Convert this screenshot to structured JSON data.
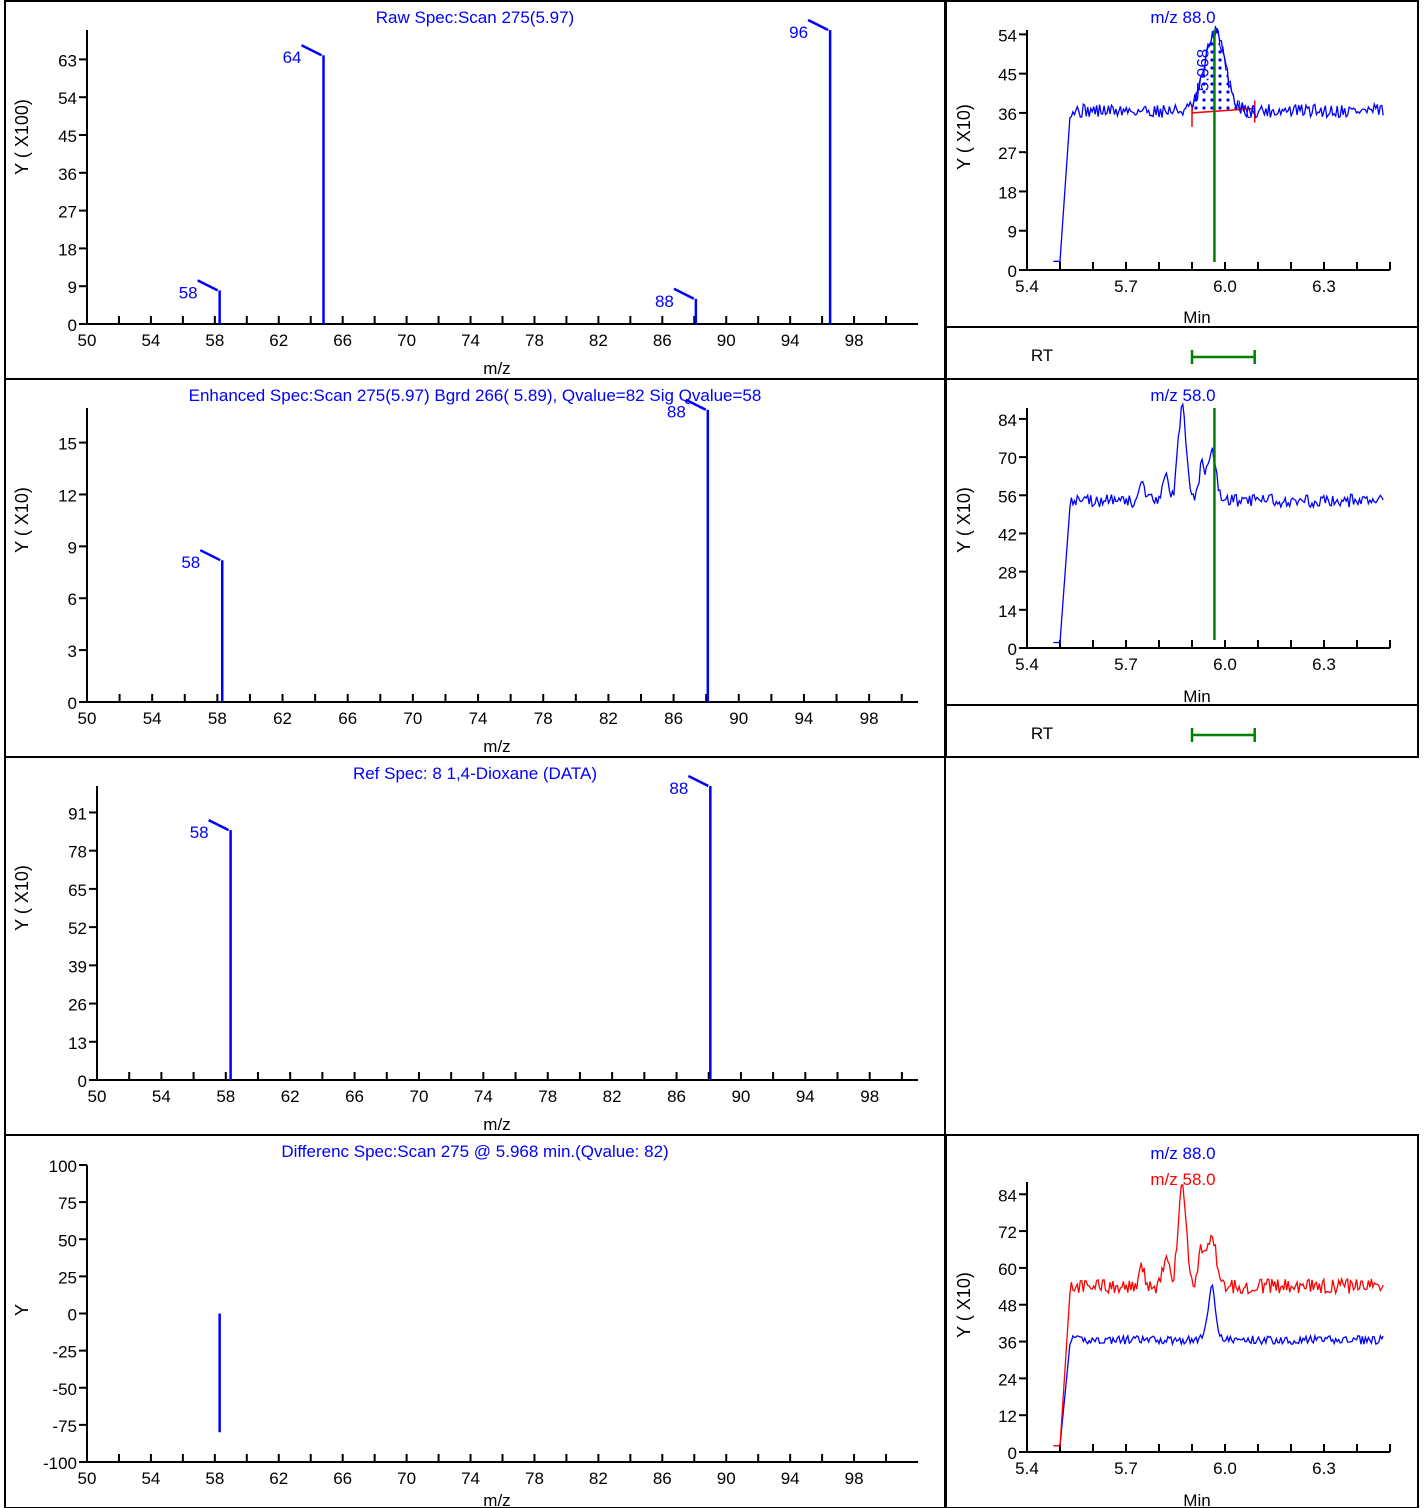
{
  "colors": {
    "blue": "#0000ff",
    "red": "#ff0000",
    "green": "#008000",
    "axis": "#000000",
    "bg": "#ffffff"
  },
  "chart_data": [
    {
      "id": "raw",
      "type": "bar",
      "title": "Raw Spec:Scan 275(5.97)",
      "xlabel": "m/z",
      "ylabel": "Y ( X100)",
      "xlim": [
        50,
        102
      ],
      "ylim": [
        0,
        70
      ],
      "xticks": [
        "50",
        "54",
        "58",
        "62",
        "66",
        "70",
        "74",
        "78",
        "82",
        "86",
        "90",
        "94",
        "98"
      ],
      "yticks": [
        "0",
        "9",
        "18",
        "27",
        "36",
        "45",
        "54",
        "63"
      ],
      "peaks": [
        {
          "x": 58.3,
          "y": 8,
          "label": "58"
        },
        {
          "x": 64.8,
          "y": 64,
          "label": "64"
        },
        {
          "x": 88.1,
          "y": 6,
          "label": "88"
        },
        {
          "x": 96.5,
          "y": 70,
          "label": "96"
        }
      ]
    },
    {
      "id": "enhanced",
      "type": "bar",
      "title": "Enhanced Spec:Scan 275(5.97) Bgrd 266( 5.89), Qvalue=82  Sig Qvalue=58",
      "xlabel": "m/z",
      "ylabel": "Y ( X10)",
      "xlim": [
        50,
        101
      ],
      "ylim": [
        0,
        17
      ],
      "xticks": [
        "50",
        "54",
        "58",
        "62",
        "66",
        "70",
        "74",
        "78",
        "82",
        "86",
        "90",
        "94",
        "98"
      ],
      "yticks": [
        "0",
        "3",
        "6",
        "9",
        "12",
        "15"
      ],
      "peaks": [
        {
          "x": 58.3,
          "y": 8.2,
          "label": "58"
        },
        {
          "x": 88.1,
          "y": 16.9,
          "label": "88"
        }
      ]
    },
    {
      "id": "ref",
      "type": "bar",
      "title": "Ref Spec:    8 1,4-Dioxane    (DATA)",
      "xlabel": "m/z",
      "ylabel": "Y ( X10)",
      "xlim": [
        50,
        101
      ],
      "ylim": [
        0,
        100
      ],
      "xticks": [
        "50",
        "54",
        "58",
        "62",
        "66",
        "70",
        "74",
        "78",
        "82",
        "86",
        "90",
        "94",
        "98"
      ],
      "yticks": [
        "0",
        "13",
        "26",
        "39",
        "52",
        "65",
        "78",
        "91"
      ],
      "peaks": [
        {
          "x": 58.3,
          "y": 85,
          "label": "58"
        },
        {
          "x": 88.1,
          "y": 100,
          "label": "88"
        }
      ]
    },
    {
      "id": "diff",
      "type": "bar",
      "title": "Differenc Spec:Scan 275 @  5.968 min.(Qvalue: 82)",
      "xlabel": "m/z",
      "ylabel": "Y",
      "xlim": [
        50,
        102
      ],
      "ylim": [
        -100,
        100
      ],
      "xticks": [
        "50",
        "54",
        "58",
        "62",
        "66",
        "70",
        "74",
        "78",
        "82",
        "86",
        "90",
        "94",
        "98"
      ],
      "yticks": [
        "-100",
        "-75",
        "-50",
        "-25",
        "0",
        "25",
        "50",
        "75",
        "100"
      ],
      "peaks": [
        {
          "x": 58.3,
          "y0": 0,
          "y": -80
        }
      ]
    },
    {
      "id": "eic88",
      "type": "line",
      "legend": [
        {
          "text": "m/z   88.0",
          "color": "#0000ff"
        }
      ],
      "xlabel": "Min",
      "ylabel": "Y ( X10)",
      "xlim": [
        5.4,
        6.5
      ],
      "ylim": [
        0,
        55
      ],
      "xticks": [
        "5.4",
        "5.7",
        "6.0",
        "6.3"
      ],
      "yticks": [
        "0",
        "9",
        "18",
        "27",
        "36",
        "45",
        "54"
      ],
      "marker": {
        "x": 5.968,
        "label": "5.968"
      },
      "integration": {
        "start": 5.9,
        "end": 6.09,
        "baseline_start": 36,
        "baseline_end": 37
      },
      "series": [
        {
          "color": "#0000ff",
          "base": 36.5,
          "jitter": 1.6,
          "bumps": [
            {
              "x": 5.97,
              "h": 18,
              "w": 0.03
            }
          ]
        }
      ]
    },
    {
      "id": "eic58",
      "type": "line",
      "legend": [
        {
          "text": "m/z   58.0",
          "color": "#0000ff"
        }
      ],
      "xlabel": "Min",
      "ylabel": "Y ( X10)",
      "xlim": [
        5.4,
        6.5
      ],
      "ylim": [
        0,
        88
      ],
      "xticks": [
        "5.4",
        "5.7",
        "6.0",
        "6.3"
      ],
      "yticks": [
        "0",
        "14",
        "28",
        "42",
        "56",
        "70",
        "84"
      ],
      "marker": {
        "x": 5.968
      },
      "series": [
        {
          "color": "#0000ff",
          "base": 54,
          "jitter": 2.4,
          "bumps": [
            {
              "x": 5.75,
              "h": 6,
              "w": 0.008
            },
            {
              "x": 5.87,
              "h": 34,
              "w": 0.012
            },
            {
              "x": 5.93,
              "h": 12,
              "w": 0.01
            },
            {
              "x": 5.96,
              "h": 18,
              "w": 0.012
            },
            {
              "x": 5.82,
              "h": 9,
              "w": 0.01
            }
          ]
        }
      ]
    },
    {
      "id": "overlay",
      "type": "line",
      "legend": [
        {
          "text": "m/z   88.0",
          "color": "#0000ff"
        },
        {
          "text": "m/z   58.0",
          "color": "#ff0000"
        }
      ],
      "xlabel": "Min",
      "ylabel": "Y ( X10)",
      "xlim": [
        5.4,
        6.5
      ],
      "ylim": [
        0,
        88
      ],
      "xticks": [
        "5.4",
        "5.7",
        "6.0",
        "6.3"
      ],
      "yticks": [
        "0",
        "12",
        "24",
        "36",
        "48",
        "60",
        "72",
        "84"
      ],
      "series": [
        {
          "color": "#0000ff",
          "base": 36.5,
          "jitter": 1.4,
          "bumps": [
            {
              "x": 5.96,
              "h": 17,
              "w": 0.012
            }
          ]
        },
        {
          "color": "#ff0000",
          "base": 54,
          "jitter": 2.4,
          "bumps": [
            {
              "x": 5.75,
              "h": 6,
              "w": 0.008
            },
            {
              "x": 5.87,
              "h": 34,
              "w": 0.012
            },
            {
              "x": 5.93,
              "h": 12,
              "w": 0.01
            },
            {
              "x": 5.96,
              "h": 18,
              "w": 0.012
            },
            {
              "x": 5.82,
              "h": 9,
              "w": 0.01
            }
          ]
        }
      ]
    }
  ],
  "rt_bars": [
    {
      "label": "RT",
      "start": 5.9,
      "end": 6.09
    },
    {
      "label": "RT",
      "start": 5.9,
      "end": 6.09
    }
  ]
}
